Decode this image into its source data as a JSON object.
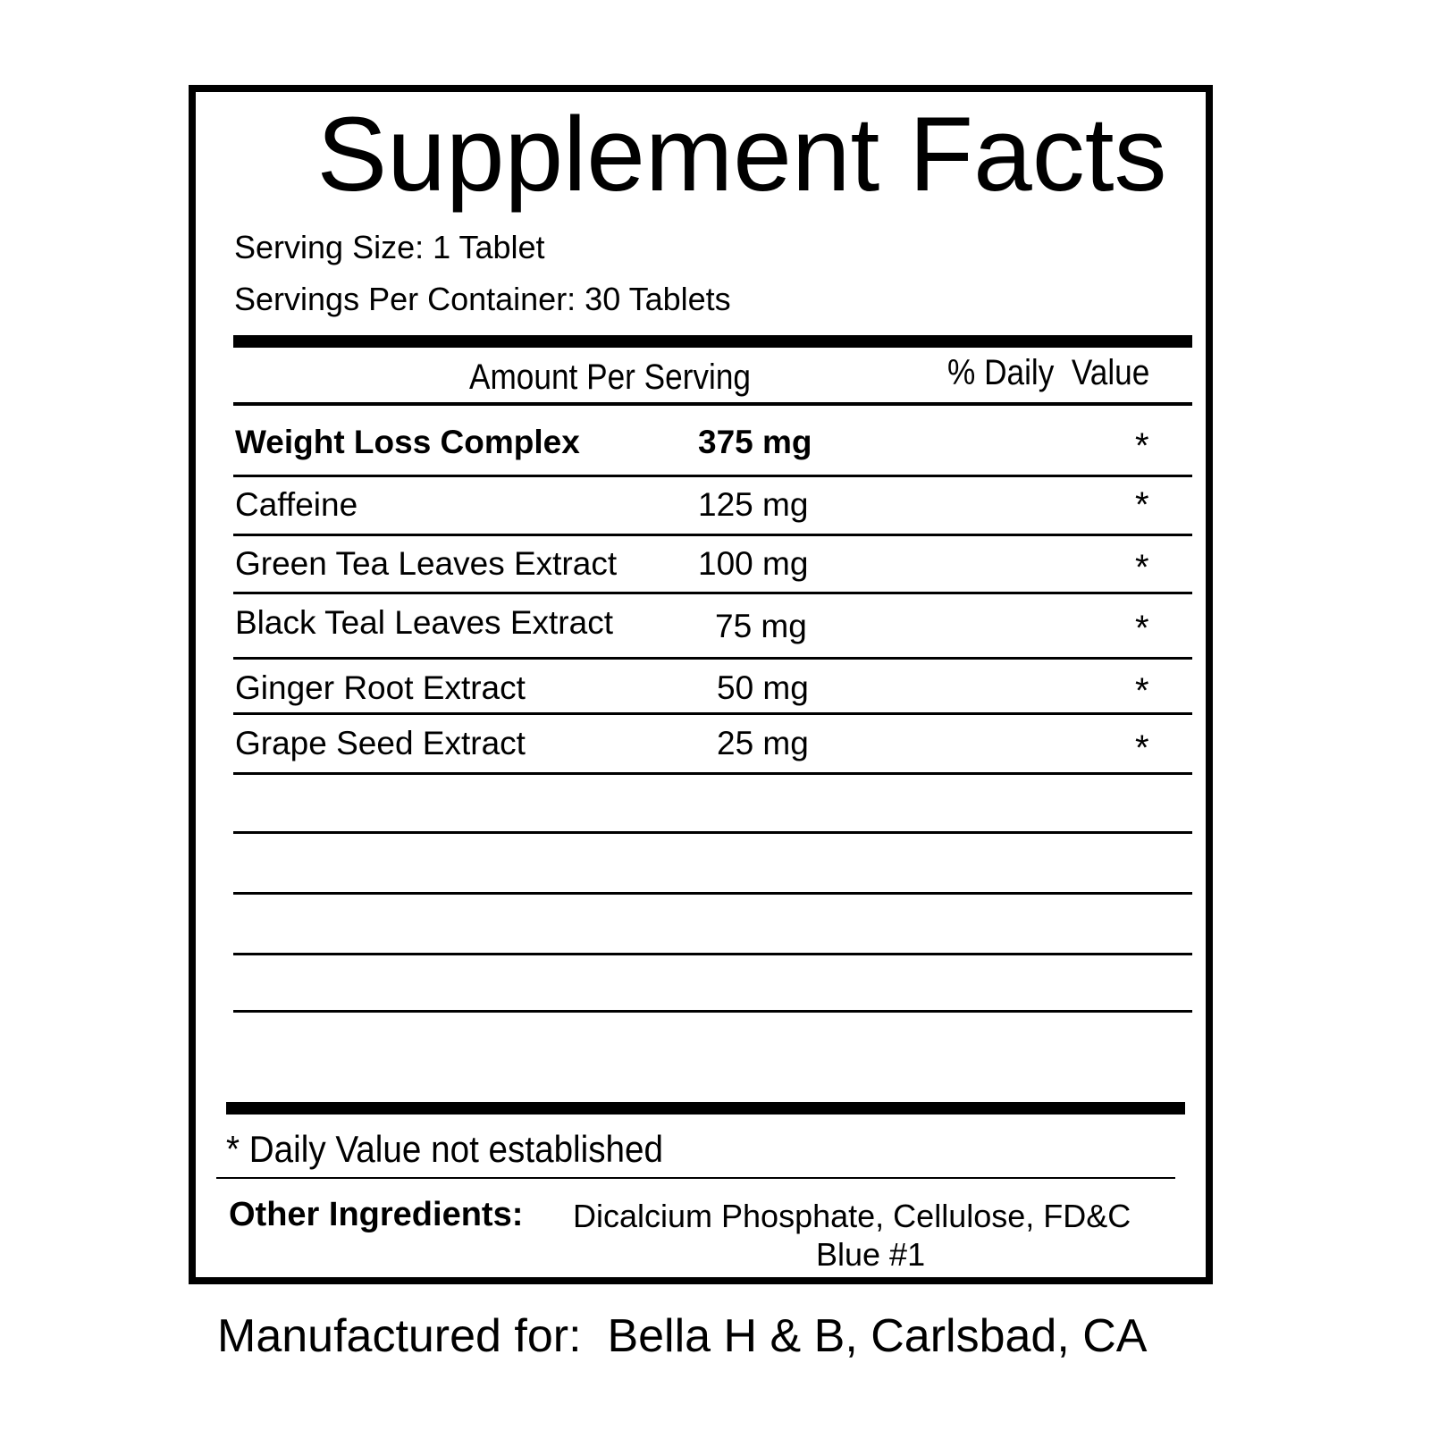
{
  "title": "Supplement Facts",
  "serving_size": "Serving Size: 1 Tablet",
  "servings_per_container": "Servings Per Container:  30 Tablets",
  "header": {
    "amount": "Amount Per Serving",
    "daily_value": "% Daily  Value"
  },
  "rows": [
    {
      "name": "Weight Loss Complex",
      "amount": "375 mg",
      "dv": "*"
    },
    {
      "name": "Caffeine",
      "amount": "125 mg",
      "dv": "*"
    },
    {
      "name": "Green Tea Leaves Extract",
      "amount": "100 mg",
      "dv": "*"
    },
    {
      "name": "Black Teal Leaves Extract",
      "amount": "75 mg",
      "dv": "*"
    },
    {
      "name": "Ginger Root Extract",
      "amount": "50 mg",
      "dv": "*"
    },
    {
      "name": "Grape Seed Extract",
      "amount": "25 mg",
      "dv": "*"
    }
  ],
  "footnote": "* Daily Value not established",
  "other_ingredients": {
    "label": "Other Ingredients:",
    "line1": "Dicalcium Phosphate, Cellulose, FD&C",
    "line2": "Blue #1"
  },
  "manufacturer": "Manufactured for:  Bella H & B, Carlsbad, CA"
}
